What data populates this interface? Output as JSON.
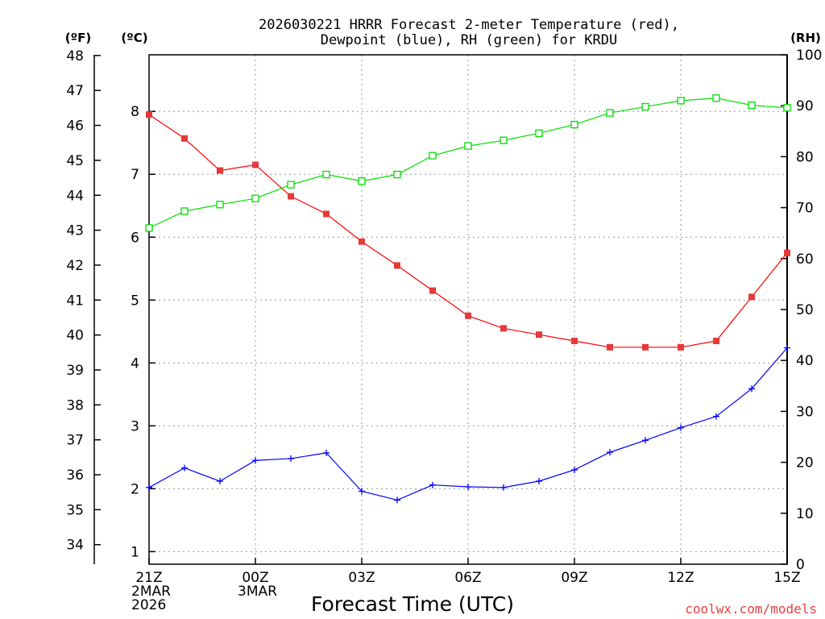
{
  "chart_data": {
    "type": "line",
    "title_line1": "2026030221 HRRR Forecast 2-meter Temperature (red),",
    "title_line2": "Dewpoint (blue), RH (green) for KRDU",
    "xlabel": "Forecast Time (UTC)",
    "left_outer_label": "(ºF)",
    "left_inner_label": "(ºC)",
    "right_label": "(RH)",
    "credit": "coolwx.com/models",
    "x_hours": [
      0,
      1,
      2,
      3,
      4,
      5,
      6,
      7,
      8,
      9,
      10,
      11,
      12,
      13,
      14,
      15,
      16,
      17,
      18
    ],
    "x_ticks": [
      {
        "hour": 0,
        "lines": [
          "21Z",
          "2MAR",
          "2026"
        ]
      },
      {
        "hour": 3,
        "lines": [
          "00Z",
          "3MAR"
        ]
      },
      {
        "hour": 6,
        "lines": [
          "03Z"
        ]
      },
      {
        "hour": 9,
        "lines": [
          "06Z"
        ]
      },
      {
        "hour": 12,
        "lines": [
          "09Z"
        ]
      },
      {
        "hour": 15,
        "lines": [
          "12Z"
        ]
      },
      {
        "hour": 18,
        "lines": [
          "15Z"
        ]
      }
    ],
    "celsius_range": [
      0.8,
      8.9
    ],
    "celsius_ticks": [
      1,
      2,
      3,
      4,
      5,
      6,
      7,
      8
    ],
    "fahrenheit_ticks": [
      34,
      35,
      36,
      37,
      38,
      39,
      40,
      41,
      42,
      43,
      44,
      45,
      46,
      47,
      48
    ],
    "rh_range": [
      0,
      100
    ],
    "rh_ticks": [
      0,
      10,
      20,
      30,
      40,
      50,
      60,
      70,
      80,
      90,
      100
    ],
    "series": [
      {
        "name": "Temperature",
        "axis": "celsius",
        "color": "#ff0000",
        "marker_color": "#e63939",
        "marker": "filled-square",
        "values": [
          7.95,
          7.57,
          7.06,
          7.15,
          6.65,
          6.37,
          5.93,
          5.55,
          5.15,
          4.75,
          4.55,
          4.45,
          4.35,
          4.25,
          4.25,
          4.25,
          4.35,
          5.05,
          5.75
        ]
      },
      {
        "name": "Dewpoint",
        "axis": "celsius",
        "color": "#0000ff",
        "marker": "plus",
        "values": [
          2.02,
          2.33,
          2.12,
          2.45,
          2.48,
          2.57,
          1.96,
          1.82,
          2.06,
          2.03,
          2.02,
          2.12,
          2.3,
          2.58,
          2.77,
          2.97,
          3.15,
          3.59,
          4.24
        ]
      },
      {
        "name": "RH",
        "axis": "rh",
        "color": "#00dd00",
        "marker": "open-square",
        "values": [
          66.0,
          69.3,
          70.6,
          71.8,
          74.5,
          76.5,
          75.2,
          76.5,
          80.2,
          82.1,
          83.2,
          84.6,
          86.3,
          88.6,
          89.8,
          91.0,
          91.5,
          90.1,
          89.6
        ]
      }
    ]
  }
}
